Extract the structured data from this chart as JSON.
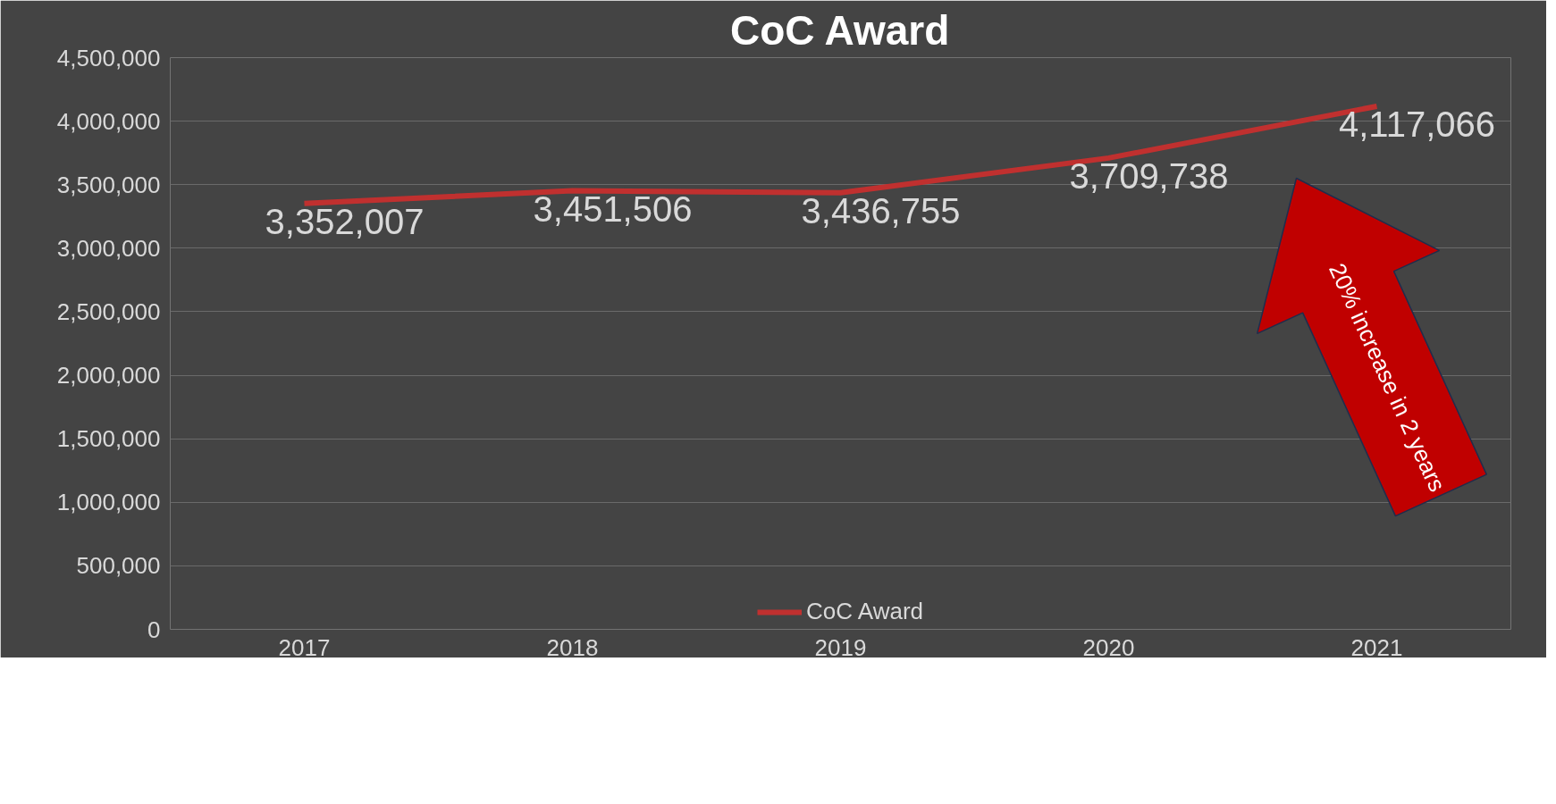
{
  "chart_data": {
    "type": "line",
    "title": "CoC Award",
    "categories": [
      "2017",
      "2018",
      "2019",
      "2020",
      "2021"
    ],
    "series": [
      {
        "name": "CoC Award",
        "color": "#c0302f",
        "values": [
          3352007,
          3451506,
          3436755,
          3709738,
          4117066
        ]
      }
    ],
    "ylim": [
      0,
      4500000
    ],
    "yticks": [
      0,
      {
        "value": 500000,
        "label": "500,000"
      },
      {
        "value": 1000000,
        "label": "1,000,000"
      },
      {
        "value": 1500000,
        "label": "1,500,000"
      },
      {
        "value": 2000000,
        "label": "2,000,000"
      },
      {
        "value": 2500000,
        "label": "2,500,000"
      },
      {
        "value": 3000000,
        "label": "3,000,000"
      },
      {
        "value": 3500000,
        "label": "3,500,000"
      },
      {
        "value": 4000000,
        "label": "4,000,000"
      },
      {
        "value": 4500000,
        "label": "4,500,000"
      }
    ],
    "value_labels": [
      "3,352,007",
      "3,451,506",
      "3,436,755",
      "3,709,738",
      "4,117,066"
    ],
    "grid": "y",
    "legend": "bottom",
    "marker": "none",
    "line_style": "solid",
    "annotations": [
      "20% increase in 2 years"
    ]
  }
}
